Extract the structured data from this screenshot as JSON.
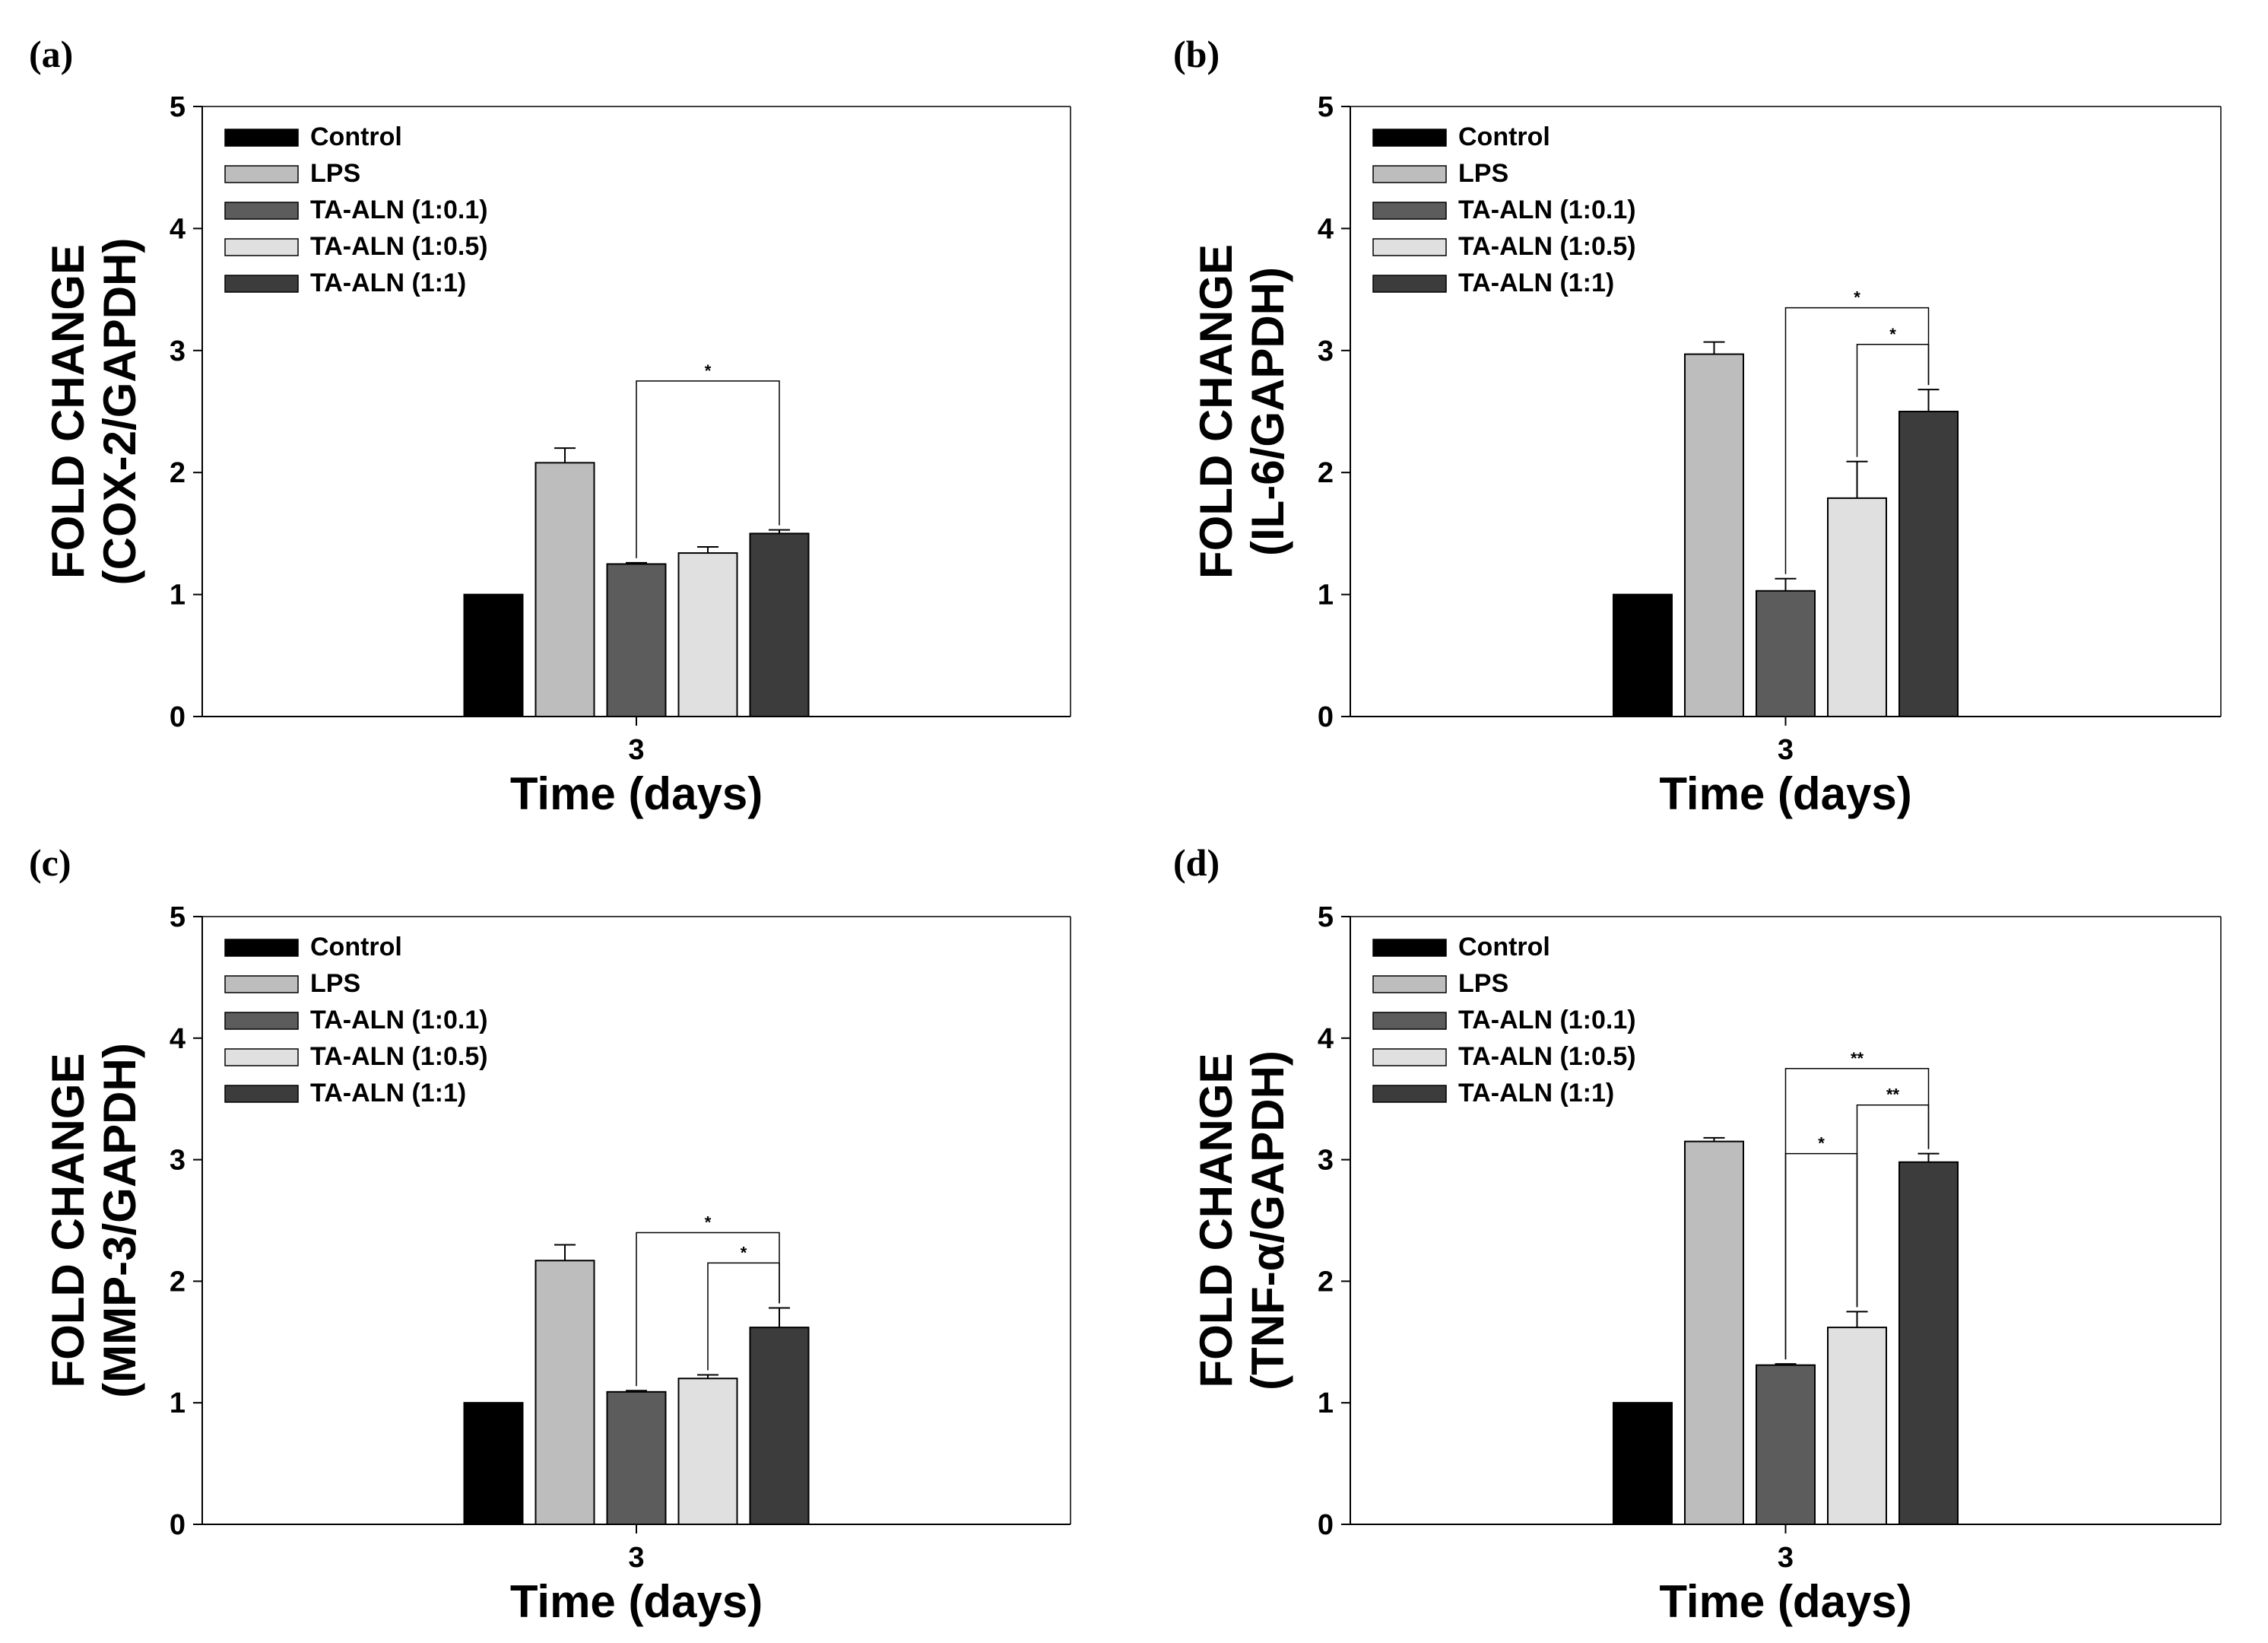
{
  "chart_data": [
    {
      "type": "bar",
      "panel_label": "(a)",
      "xlabel": "Time (days)",
      "ylabel_lines": [
        "FOLD CHANGE",
        "(COX-2/GAPDH)"
      ],
      "ylim": [
        0,
        5
      ],
      "yticks": [
        "0",
        "1",
        "2",
        "3",
        "4",
        "5"
      ],
      "categories": [
        "3"
      ],
      "legend_position": "top-left",
      "series": [
        {
          "name": "Control",
          "values": [
            1.0
          ],
          "errors": [
            0.0
          ]
        },
        {
          "name": "LPS",
          "values": [
            2.08
          ],
          "errors": [
            0.12
          ]
        },
        {
          "name": "TA-ALN (1:0.1)",
          "values": [
            1.25
          ],
          "errors": [
            0.01
          ]
        },
        {
          "name": "TA-ALN (1:0.5)",
          "values": [
            1.34
          ],
          "errors": [
            0.05
          ]
        },
        {
          "name": "TA-ALN (1:1)",
          "values": [
            1.5
          ],
          "errors": [
            0.03
          ]
        }
      ],
      "significance": [
        {
          "from": "TA-ALN (1:0.1)",
          "to": "TA-ALN (1:1)",
          "label": "*",
          "level": 2.75
        }
      ]
    },
    {
      "type": "bar",
      "panel_label": "(b)",
      "xlabel": "Time (days)",
      "ylabel_lines": [
        "FOLD CHANGE",
        "(IL-6/GAPDH)"
      ],
      "ylim": [
        0,
        5
      ],
      "yticks": [
        "0",
        "1",
        "2",
        "3",
        "4",
        "5"
      ],
      "categories": [
        "3"
      ],
      "legend_position": "top-left",
      "series": [
        {
          "name": "Control",
          "values": [
            1.0
          ],
          "errors": [
            0.0
          ]
        },
        {
          "name": "LPS",
          "values": [
            2.97
          ],
          "errors": [
            0.1
          ]
        },
        {
          "name": "TA-ALN (1:0.1)",
          "values": [
            1.03
          ],
          "errors": [
            0.1
          ]
        },
        {
          "name": "TA-ALN (1:0.5)",
          "values": [
            1.79
          ],
          "errors": [
            0.3
          ]
        },
        {
          "name": "TA-ALN (1:1)",
          "values": [
            2.5
          ],
          "errors": [
            0.18
          ]
        }
      ],
      "significance": [
        {
          "from": "TA-ALN (1:0.1)",
          "to": "TA-ALN (1:1)",
          "label": "*",
          "level": 3.35
        },
        {
          "from": "TA-ALN (1:0.5)",
          "to": "TA-ALN (1:1)",
          "label": "*",
          "level": 3.05
        }
      ]
    },
    {
      "type": "bar",
      "panel_label": "(c)",
      "xlabel": "Time (days)",
      "ylabel_lines": [
        "FOLD CHANGE",
        "(MMP-3/GAPDH)"
      ],
      "ylim": [
        0,
        5
      ],
      "yticks": [
        "0",
        "1",
        "2",
        "3",
        "4",
        "5"
      ],
      "categories": [
        "3"
      ],
      "legend_position": "top-left",
      "series": [
        {
          "name": "Control",
          "values": [
            1.0
          ],
          "errors": [
            0.0
          ]
        },
        {
          "name": "LPS",
          "values": [
            2.17
          ],
          "errors": [
            0.13
          ]
        },
        {
          "name": "TA-ALN (1:0.1)",
          "values": [
            1.09
          ],
          "errors": [
            0.01
          ]
        },
        {
          "name": "TA-ALN (1:0.5)",
          "values": [
            1.2
          ],
          "errors": [
            0.03
          ]
        },
        {
          "name": "TA-ALN (1:1)",
          "values": [
            1.62
          ],
          "errors": [
            0.16
          ]
        }
      ],
      "significance": [
        {
          "from": "TA-ALN (1:0.1)",
          "to": "TA-ALN (1:1)",
          "label": "*",
          "level": 2.4
        },
        {
          "from": "TA-ALN (1:0.5)",
          "to": "TA-ALN (1:1)",
          "label": "*",
          "level": 2.15
        }
      ]
    },
    {
      "type": "bar",
      "panel_label": "(d)",
      "xlabel": "Time (days)",
      "ylabel_lines": [
        "FOLD CHANGE",
        "(TNF-α/GAPDH)"
      ],
      "ylim": [
        0,
        5
      ],
      "yticks": [
        "0",
        "1",
        "2",
        "3",
        "4",
        "5"
      ],
      "categories": [
        "3"
      ],
      "legend_position": "top-left",
      "series": [
        {
          "name": "Control",
          "values": [
            1.0
          ],
          "errors": [
            0.0
          ]
        },
        {
          "name": "LPS",
          "values": [
            3.15
          ],
          "errors": [
            0.03
          ]
        },
        {
          "name": "TA-ALN (1:0.1)",
          "values": [
            1.31
          ],
          "errors": [
            0.01
          ]
        },
        {
          "name": "TA-ALN (1:0.5)",
          "values": [
            1.62
          ],
          "errors": [
            0.13
          ]
        },
        {
          "name": "TA-ALN (1:1)",
          "values": [
            2.98
          ],
          "errors": [
            0.07
          ]
        }
      ],
      "significance": [
        {
          "from": "TA-ALN (1:0.1)",
          "to": "TA-ALN (1:1)",
          "label": "**",
          "level": 3.75
        },
        {
          "from": "TA-ALN (1:0.5)",
          "to": "TA-ALN (1:1)",
          "label": "**",
          "level": 3.45
        },
        {
          "from": "TA-ALN (1:0.1)",
          "to": "TA-ALN (1:0.5)",
          "label": "*",
          "level": 3.05
        }
      ]
    }
  ],
  "colors": {
    "Control": "#000000",
    "LPS": "#bdbdbd",
    "TA-ALN (1:0.1)": "#5c5c5c",
    "TA-ALN (1:0.5)": "#e0e0e0",
    "TA-ALN (1:1)": "#3c3c3c"
  }
}
